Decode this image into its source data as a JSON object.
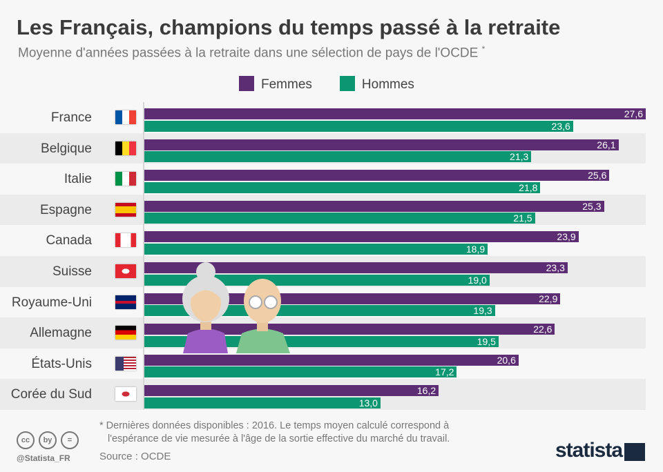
{
  "header": {
    "title": "Les Français, champions du temps passé à la retraite",
    "subtitle": "Moyenne d'années passées à la retraite dans une sélection de pays de l'OCDE",
    "subtitle_mark": "*"
  },
  "chart_data": {
    "type": "bar",
    "orientation": "horizontal",
    "xlim": [
      0,
      27.6
    ],
    "grid": false,
    "legend": "top",
    "categories": [
      "France",
      "Belgique",
      "Italie",
      "Espagne",
      "Canada",
      "Suisse",
      "Royaume-Uni",
      "Allemagne",
      "États-Unis",
      "Corée du Sud"
    ],
    "series": [
      {
        "name": "Femmes",
        "color": "#5c2d73",
        "values": [
          27.6,
          26.1,
          25.6,
          25.3,
          23.9,
          23.3,
          22.9,
          22.6,
          20.6,
          16.2
        ],
        "labels": [
          "27,6",
          "26,1",
          "25,6",
          "25,3",
          "23,9",
          "23,3",
          "22,9",
          "22,6",
          "20,6",
          "16,2"
        ]
      },
      {
        "name": "Hommes",
        "color": "#0c9672",
        "values": [
          23.6,
          21.3,
          21.8,
          21.5,
          18.9,
          19.0,
          19.3,
          19.5,
          17.2,
          13.0
        ],
        "labels": [
          "23,6",
          "21,3",
          "21,8",
          "21,5",
          "18,9",
          "19,0",
          "19,3",
          "19,5",
          "17,2",
          "13,0"
        ]
      }
    ]
  },
  "footer": {
    "note_line1": "* Dernières données disponibles : 2016. Le temps moyen calculé correspond à",
    "note_line2": "l'espérance de vie mesurée à l'âge de la sortie effective du marché du travail.",
    "source": "Source : OCDE",
    "handle": "@Statista_FR",
    "logo": "statista",
    "cc_icons": [
      "cc",
      "by",
      "="
    ]
  }
}
